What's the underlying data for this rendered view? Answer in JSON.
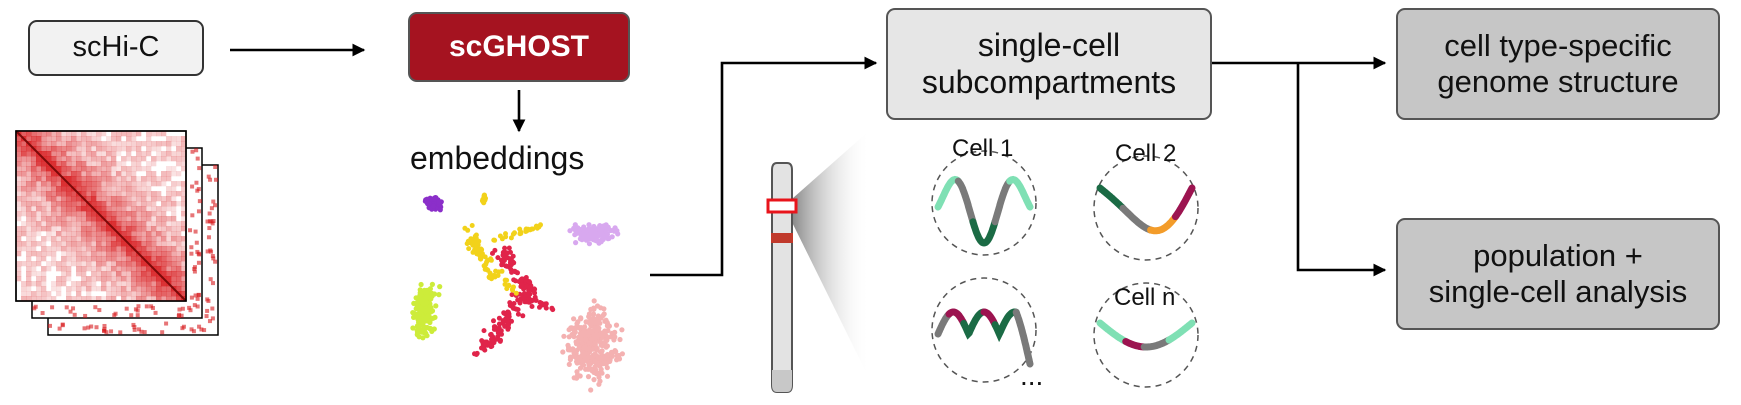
{
  "inputs": {
    "schic_label": "scHi-C"
  },
  "method": {
    "name": "scGHOST",
    "embeddings_label": "embeddings"
  },
  "outputs": {
    "subcompartments_line1": "single-cell",
    "subcompartments_line2": "subcompartments",
    "celltype_line1": "cell type-specific",
    "celltype_line2": "genome structure",
    "population_line1": "population +",
    "population_line2": "single-cell analysis"
  },
  "cells": {
    "cell1": "Cell 1",
    "cell2": "Cell 2",
    "celln": "Cell n",
    "ellipsis": "..."
  },
  "colors": {
    "scghost_fill": "#a51320",
    "box_light": "#e6e6e6",
    "box_dark": "#c6c6c6",
    "heatmap_red": "#d7191c",
    "subcomp_dark_green": "#1b6b45",
    "subcomp_light_green": "#7fe0b4",
    "subcomp_magenta": "#9c1450",
    "subcomp_orange": "#f39c2a",
    "subcomp_gray": "#7a7a7a",
    "cluster_purple": "#8b2fc9",
    "cluster_yellow": "#f2d21a",
    "cluster_lilac": "#d8a8ef",
    "cluster_lime": "#cdec3a",
    "cluster_crimson": "#e0244a",
    "cluster_pink": "#f4b1b1"
  }
}
